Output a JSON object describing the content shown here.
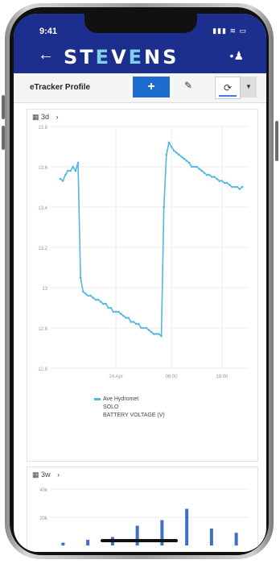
{
  "status": {
    "time": "9:41",
    "icons": "▮▮▮ ≋ ▭"
  },
  "nav": {
    "back_glyph": "←",
    "brand_prefix": "ST",
    "brand_accent": "E",
    "brand_mid": "V",
    "brand_accent2": "E",
    "brand_suffix": "NS",
    "user_glyph": "•♟"
  },
  "toolbar": {
    "title": "eTracker Profile",
    "add_label": "+",
    "edit_glyph": "✎",
    "refresh_glyph": "⟳",
    "dropdown_glyph": "▼"
  },
  "chart1": {
    "range_label": "3d",
    "range_chevron": "›",
    "calendar_glyph": "▦"
  },
  "legend": {
    "line1": "Ave Hydromet",
    "line2": "SOLO",
    "line3": "BATTERY VOLTAGE (V)"
  },
  "chart2": {
    "range_label": "3w",
    "range_chevron": "›",
    "calendar_glyph": "▦",
    "ytick_top": "40k",
    "ytick_bottom": "20k"
  },
  "colors": {
    "header": "#1c2f8f",
    "series": "#4fb8de",
    "add_button": "#1e6ccf"
  },
  "chart_data": [
    {
      "type": "line",
      "title": "",
      "xlabel": "",
      "ylabel": "",
      "y_ticks": [
        "13.8",
        "13.6",
        "13.4",
        "13.2",
        "13",
        "12.8",
        "12.6"
      ],
      "x_ticks": [
        "24 Apr",
        "06:00",
        "18:00"
      ],
      "ylim": [
        12.6,
        13.8
      ],
      "grid": true,
      "legend_position": "bottom",
      "series": [
        {
          "name": "Ave Hydromet SOLO BATTERY VOLTAGE (V)",
          "x": [
            0,
            1,
            2,
            3,
            4,
            5,
            6,
            7,
            8,
            9,
            10,
            11,
            12,
            13,
            14,
            15,
            16,
            17,
            18,
            19,
            20,
            21,
            22,
            23,
            24,
            25,
            26,
            27,
            28,
            29,
            30,
            31,
            32,
            33,
            34,
            35,
            36,
            37,
            38,
            39,
            40,
            41,
            42,
            43,
            44,
            45,
            46,
            47,
            48,
            49,
            50,
            51,
            52,
            53,
            54,
            55,
            56,
            57,
            58,
            59,
            60,
            61,
            62,
            63,
            64,
            65,
            66,
            67,
            68,
            69,
            70,
            71,
            72
          ],
          "y": [
            13.54,
            13.53,
            13.56,
            13.58,
            13.58,
            13.6,
            13.58,
            13.62,
            13.05,
            12.98,
            12.97,
            12.96,
            12.96,
            12.95,
            12.94,
            12.94,
            12.93,
            12.92,
            12.92,
            12.9,
            12.9,
            12.88,
            12.88,
            12.88,
            12.87,
            12.86,
            12.85,
            12.85,
            12.83,
            12.83,
            12.82,
            12.82,
            12.8,
            12.8,
            12.8,
            12.79,
            12.78,
            12.77,
            12.77,
            12.77,
            12.76,
            13.4,
            13.66,
            13.72,
            13.7,
            13.68,
            13.67,
            13.66,
            13.65,
            13.64,
            13.63,
            13.62,
            13.6,
            13.6,
            13.6,
            13.59,
            13.58,
            13.57,
            13.56,
            13.56,
            13.55,
            13.55,
            13.54,
            13.53,
            13.53,
            13.52,
            13.52,
            13.51,
            13.5,
            13.5,
            13.5,
            13.49,
            13.5
          ]
        }
      ]
    },
    {
      "type": "bar",
      "title": "",
      "y_ticks": [
        "40k",
        "20k"
      ],
      "ylim": [
        0,
        40
      ],
      "values": [
        2,
        4,
        6,
        14,
        18,
        26,
        12,
        9
      ]
    }
  ]
}
